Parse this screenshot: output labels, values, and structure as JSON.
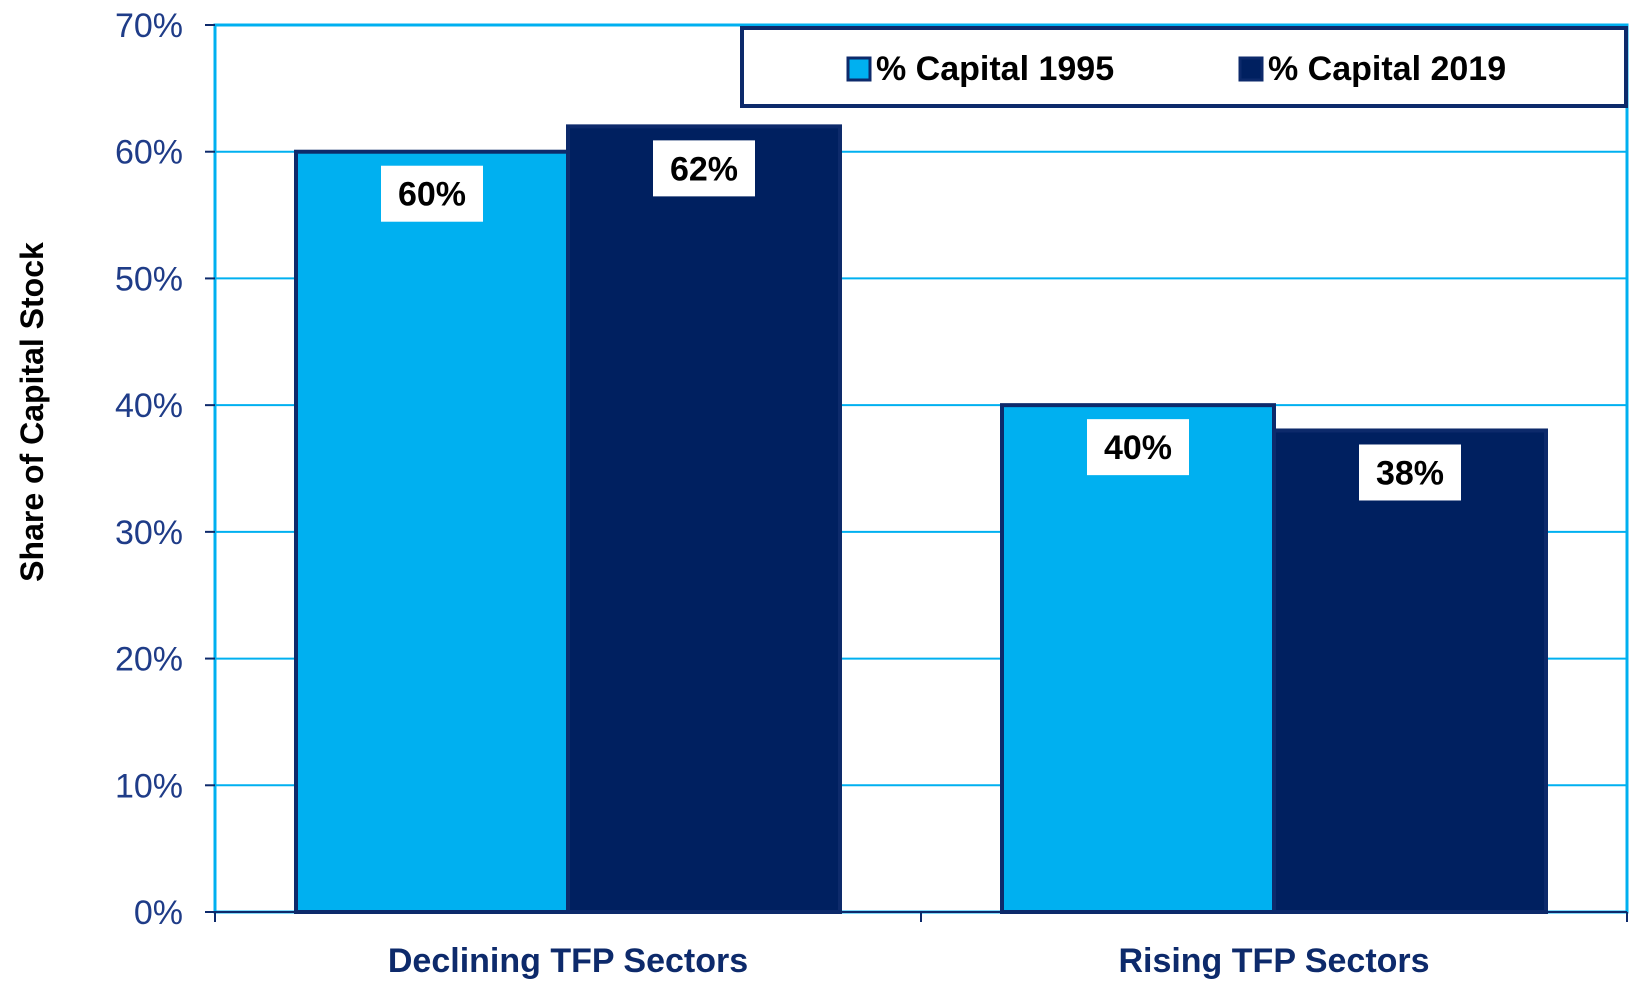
{
  "chart_data": {
    "type": "bar",
    "categories": [
      "Declining TFP Sectors",
      "Rising TFP Sectors"
    ],
    "series": [
      {
        "name": "% Capital 1995",
        "values": [
          60,
          40
        ],
        "color": "#00b0f0"
      },
      {
        "name": "% Capital 2019",
        "values": [
          62,
          38
        ],
        "color": "#002060"
      }
    ],
    "data_labels": [
      [
        "60%",
        "40%"
      ],
      [
        "62%",
        "38%"
      ]
    ],
    "ylabel": "Share of Capital Stock",
    "xlabel": "",
    "ylim": [
      0,
      70
    ],
    "yticks": [
      0,
      10,
      20,
      30,
      40,
      50,
      60,
      70
    ],
    "ytick_labels": [
      "0%",
      "10%",
      "20%",
      "30%",
      "40%",
      "50%",
      "60%",
      "70%"
    ],
    "grid": true,
    "legend_position": "top-right",
    "colors": {
      "plot_border": "#00b0f0",
      "gridline": "#00b0f0",
      "bar_outline": "#0d2a6b",
      "legend_border": "#0d2a6b",
      "axis_text": "#1f3c88"
    }
  }
}
